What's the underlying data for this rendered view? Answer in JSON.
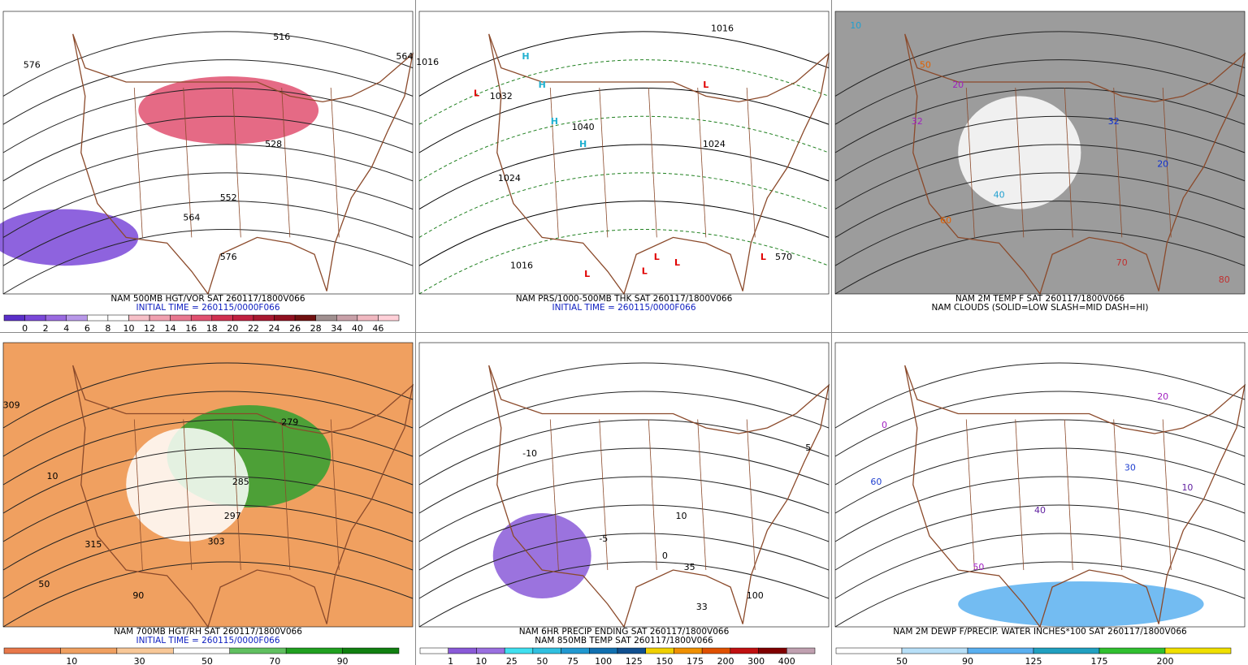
{
  "panels": [
    {
      "caption": [
        "NAM 500MB HGT/VOR SAT 260117/1800V066",
        "INITIAL TIME = 260115/0000F066"
      ],
      "background": "#ffffff",
      "colorbar": {
        "labels": [
          0,
          2,
          4,
          6,
          8,
          10,
          12,
          14,
          16,
          18,
          20,
          22,
          24,
          26,
          28,
          34,
          40,
          46
        ],
        "colors": [
          "#5a2fc8",
          "#7a48d8",
          "#9a6ae0",
          "#b898e8",
          "#ffffff",
          "#ffffff",
          "#f6c0c8",
          "#f0a0b0",
          "#e87890",
          "#e05070",
          "#d03050",
          "#c02040",
          "#a81830",
          "#901020",
          "#701010",
          "#a09090",
          "#c8a0a8",
          "#f0b8c0",
          "#ffd0d8"
        ]
      },
      "map_labels": [
        "576",
        "516",
        "564",
        "552",
        "564",
        "576",
        "528"
      ]
    },
    {
      "caption": [
        "NAM PRS/1000-500MB THK SAT 260117/1800V066",
        "INITIAL TIME = 260115/0000F066"
      ],
      "background": "#ffffff",
      "map_labels": [
        "1016",
        "1032",
        "1024",
        "1040",
        "1016",
        "1024",
        "1016",
        "570",
        "H",
        "H",
        "H",
        "H",
        "L",
        "L",
        "L",
        "L",
        "L",
        "L",
        "L"
      ]
    },
    {
      "caption": [
        "NAM 2M TEMP F SAT 260117/1800V066",
        "NAM CLOUDS (SOLID=LOW SLASH=MID DASH=HI)"
      ],
      "background": "#9c9c9c",
      "map_labels": [
        "20",
        "32",
        "40",
        "60",
        "70",
        "32",
        "20",
        "10",
        "50",
        "80"
      ]
    },
    {
      "caption": [
        "NAM 700MB HGT/RH SAT 260117/1800V066",
        "INITIAL TIME = 260115/0000F066"
      ],
      "background": "#f0a060",
      "colorbar": {
        "labels": [
          10,
          30,
          50,
          70,
          90
        ],
        "colors": [
          "#e8784a",
          "#f0a060",
          "#f8c898",
          "#ffffff",
          "#60c060",
          "#20a020",
          "#108010"
        ]
      },
      "map_labels": [
        "309",
        "10",
        "50",
        "315",
        "90",
        "279",
        "285",
        "297",
        "303"
      ]
    },
    {
      "caption": [
        "NAM 6HR PRECIP ENDING SAT 260117/1800V066",
        "NAM 850MB TEMP SAT 260117/1800V066"
      ],
      "background": "#ffffff",
      "colorbar": {
        "labels": [
          1,
          10,
          25,
          50,
          75,
          100,
          125,
          150,
          175,
          200,
          300,
          400
        ],
        "colors": [
          "#ffffff",
          "#8a5ad8",
          "#9a70e0",
          "#40e0f0",
          "#30c0e0",
          "#2098d0",
          "#1070b0",
          "#105090",
          "#f0d000",
          "#f09000",
          "#e05000",
          "#c01010",
          "#800000",
          "#c0a0b0"
        ]
      },
      "map_labels": [
        "10",
        "5",
        "-5",
        "-10",
        "0",
        "100",
        "35",
        "33"
      ]
    },
    {
      "caption": [
        "NAM 2M DEWP F/PRECIP. WATER INCHES*100 SAT 260117/1800V066"
      ],
      "background": "#ffffff",
      "colorbar": {
        "labels": [
          50,
          90,
          125,
          175,
          200
        ],
        "colors": [
          "#ffffff",
          "#b8e0f8",
          "#5ab0f0",
          "#20a0c0",
          "#30c030",
          "#f0e000"
        ]
      },
      "map_labels": [
        "20",
        "30",
        "40",
        "50",
        "60",
        "10",
        "0"
      ]
    }
  ]
}
